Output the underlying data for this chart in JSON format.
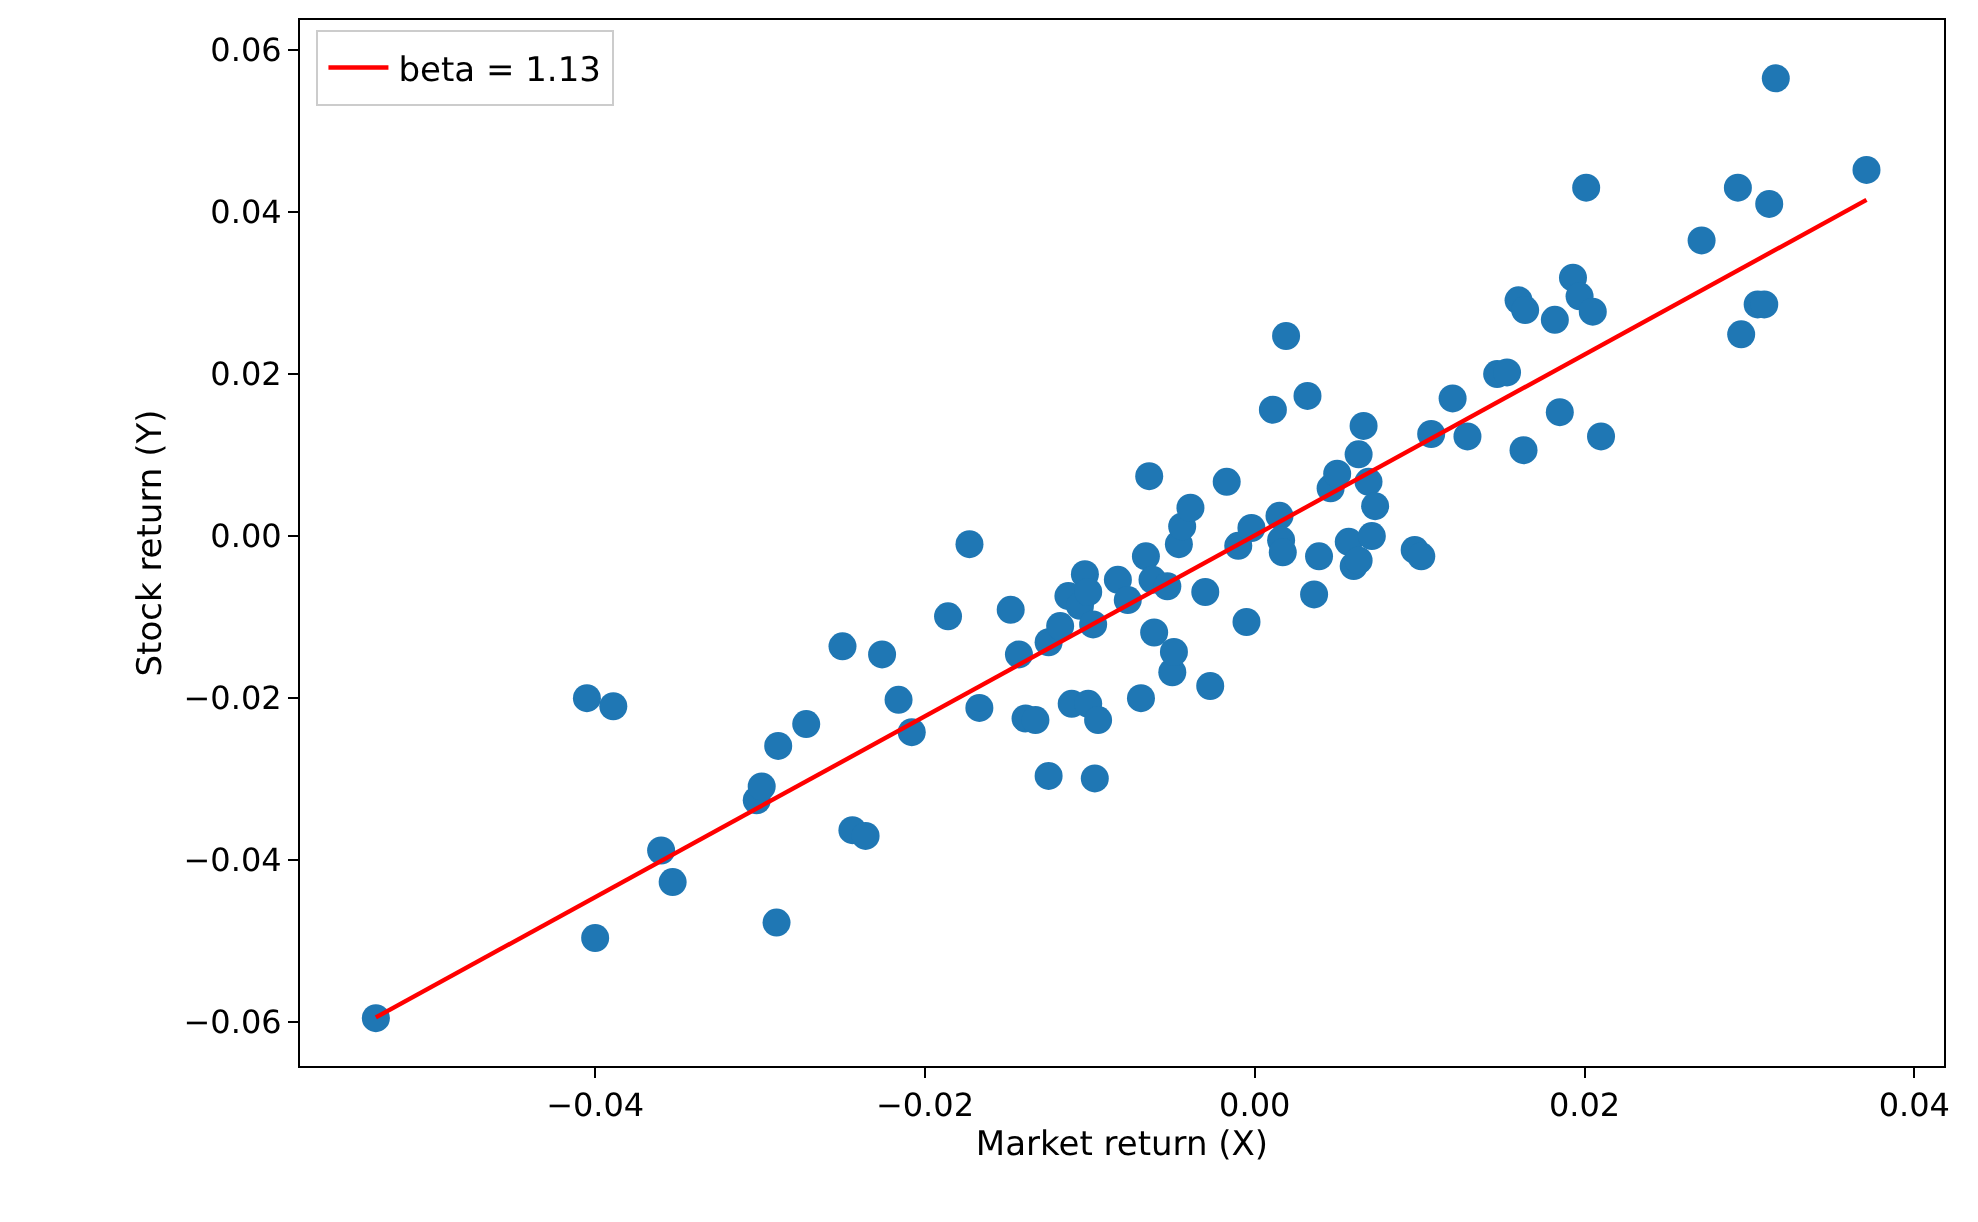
{
  "chart_data": {
    "type": "scatter",
    "xlabel": "Market return (X)",
    "ylabel": "Stock return (Y)",
    "xlim": [
      -0.0579,
      0.0418
    ],
    "ylim": [
      -0.0654,
      0.0637
    ],
    "xticks": [
      {
        "value": -0.04,
        "label": "−0.04"
      },
      {
        "value": -0.02,
        "label": "−0.02"
      },
      {
        "value": 0,
        "label": "0.00"
      },
      {
        "value": 0.02,
        "label": "0.02"
      },
      {
        "value": 0.04,
        "label": "0.04"
      }
    ],
    "yticks": [
      {
        "value": -0.06,
        "label": "−0.06"
      },
      {
        "value": -0.04,
        "label": "−0.04"
      },
      {
        "value": -0.02,
        "label": "−0.02"
      },
      {
        "value": 0,
        "label": "0.00"
      },
      {
        "value": 0.02,
        "label": "0.02"
      },
      {
        "value": 0.04,
        "label": "0.04"
      },
      {
        "value": 0.06,
        "label": "0.06"
      }
    ],
    "legend": "top left",
    "marker": "circle",
    "series": [
      {
        "color": "#1f77b4",
        "x": [
          -0.0533,
          -0.0405,
          -0.0389,
          -0.04,
          -0.036,
          -0.0353,
          -0.0302,
          -0.0299,
          -0.0289,
          -0.029,
          -0.0272,
          -0.025,
          -0.0244,
          -0.0236,
          -0.0226,
          -0.0216,
          -0.0208,
          -0.0186,
          -0.0173,
          -0.0167,
          -0.0148,
          -0.0143,
          -0.0139,
          -0.0133,
          -0.0125,
          -0.0125,
          -0.0118,
          -0.0113,
          -0.0111,
          -0.0106,
          -0.0103,
          -0.0101,
          -0.0098,
          -0.0097,
          -0.0101,
          -0.0095,
          -0.0083,
          -0.0077,
          -0.0069,
          -0.0064,
          -0.0066,
          -0.0062,
          -0.0061,
          -0.0053,
          -0.005,
          -0.0049,
          -0.0046,
          -0.0044,
          -0.0039,
          -0.003,
          -0.0027,
          -0.0017,
          -0.001,
          -0.0005,
          -0.0002,
          0.0011,
          0.0015,
          0.0016,
          0.0017,
          0.0019,
          0.0032,
          0.0036,
          0.0039,
          0.0046,
          0.005,
          0.0057,
          0.006,
          0.0063,
          0.0063,
          0.0066,
          0.0069,
          0.0071,
          0.0073,
          0.0097,
          0.0101,
          0.0107,
          0.012,
          0.0129,
          0.0147,
          0.0153,
          0.0163,
          0.016,
          0.0164,
          0.0185,
          0.0182,
          0.0193,
          0.0197,
          0.0201,
          0.0205,
          0.021,
          0.0271,
          0.0293,
          0.0295,
          0.0305,
          0.0309,
          0.0312,
          0.0316,
          0.0371
        ],
        "values": [
          -0.0595,
          -0.02,
          -0.021,
          -0.0496,
          -0.0388,
          -0.0427,
          -0.0326,
          -0.0309,
          -0.0259,
          -0.0477,
          -0.0232,
          -0.0136,
          -0.0363,
          -0.037,
          -0.0146,
          -0.0202,
          -0.0242,
          -0.0099,
          -0.001,
          -0.0212,
          -0.0091,
          -0.0146,
          -0.0225,
          -0.0227,
          -0.0131,
          -0.0296,
          -0.0111,
          -0.0074,
          -0.0207,
          -0.0086,
          -0.0047,
          -0.0069,
          -0.0109,
          -0.0299,
          -0.0207,
          -0.0227,
          -0.0054,
          -0.0079,
          -0.02,
          0.0074,
          -0.0025,
          -0.0054,
          -0.0119,
          -0.0062,
          -0.0168,
          -0.0143,
          -0.001,
          0.0012,
          0.0035,
          -0.0069,
          -0.0185,
          0.0067,
          -0.0012,
          -0.0106,
          0.001,
          0.0156,
          0.0025,
          -0.0005,
          -0.002,
          0.0247,
          0.0173,
          -0.0072,
          -0.0025,
          0.0059,
          0.0077,
          -0.0007,
          -0.0037,
          -0.003,
          0.0101,
          0.0136,
          0.0067,
          0.0,
          0.0037,
          -0.0017,
          -0.0025,
          0.0126,
          0.017,
          0.0123,
          0.02,
          0.0202,
          0.0106,
          0.0291,
          0.0279,
          0.0153,
          0.0267,
          0.0319,
          0.0296,
          0.043,
          0.0277,
          0.0123,
          0.0365,
          0.043,
          0.0249,
          0.0286,
          0.0286,
          0.041,
          0.0565,
          0.0452
        ]
      },
      {
        "type": "line",
        "marker": "none",
        "name": "beta = 1.13",
        "color": "#ff0000",
        "x": [
          -0.0533,
          0.0371
        ],
        "values": [
          -0.0594,
          0.0415
        ]
      }
    ]
  }
}
